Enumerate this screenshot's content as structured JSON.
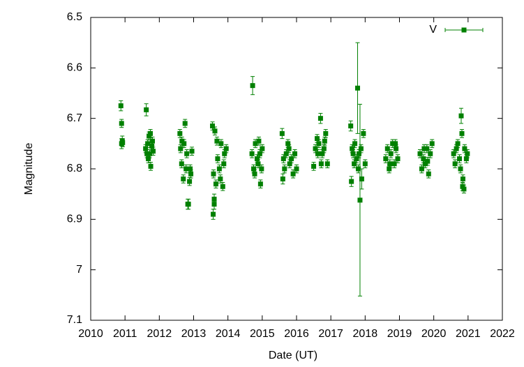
{
  "chart_data": {
    "type": "errorbar-scatter",
    "xlabel": "Date (UT)",
    "ylabel": "Magnitude",
    "xlim": [
      2010,
      2022
    ],
    "xticks": [
      2010,
      2011,
      2012,
      2013,
      2014,
      2015,
      2016,
      2017,
      2018,
      2019,
      2020,
      2021,
      2022
    ],
    "ylim": [
      7.1,
      6.5
    ],
    "yticks": [
      6.5,
      6.6,
      6.7,
      6.8,
      6.9,
      7,
      7.1
    ],
    "legend": "top-right",
    "series": [
      {
        "name": "V",
        "color": "#008000",
        "x": [
          2010.88,
          2010.9,
          2010.92,
          2010.9,
          2010.93,
          2011.62,
          2011.6,
          2011.66,
          2011.7,
          2011.72,
          2011.75,
          2011.78,
          2011.8,
          2011.68,
          2011.74,
          2011.82,
          2011.64,
          2012.6,
          2012.62,
          2012.65,
          2012.7,
          2012.72,
          2012.75,
          2012.78,
          2012.8,
          2012.85,
          2012.88,
          2012.9,
          2012.95,
          2012.66,
          2012.83,
          2012.92,
          2013.55,
          2013.57,
          2013.6,
          2013.62,
          2013.65,
          2013.7,
          2013.75,
          2013.8,
          2013.85,
          2013.9,
          2013.95,
          2013.58,
          2013.6,
          2013.68,
          2013.78,
          2013.88,
          2014.72,
          2014.7,
          2014.75,
          2014.8,
          2014.85,
          2014.9,
          2014.95,
          2015.0,
          2014.78,
          2014.88,
          2014.93,
          2014.98,
          2015.58,
          2015.6,
          2015.65,
          2015.7,
          2015.75,
          2015.8,
          2015.85,
          2015.9,
          2015.95,
          2016.0,
          2015.62,
          2015.78,
          2016.5,
          2016.55,
          2016.6,
          2016.65,
          2016.7,
          2016.75,
          2016.8,
          2016.85,
          2016.9,
          2016.72,
          2016.62,
          2016.82,
          2017.58,
          2017.6,
          2017.62,
          2017.65,
          2017.7,
          2017.75,
          2017.78,
          2017.8,
          2017.85,
          2017.9,
          2017.95,
          2018.0,
          2017.82,
          2017.88,
          2017.68,
          2018.6,
          2018.65,
          2018.7,
          2018.75,
          2018.8,
          2018.85,
          2018.9,
          2018.95,
          2018.72,
          2018.88,
          2019.6,
          2019.65,
          2019.7,
          2019.75,
          2019.8,
          2019.85,
          2019.9,
          2019.95,
          2019.72,
          2019.82,
          2020.58,
          2020.62,
          2020.66,
          2020.7,
          2020.75,
          2020.8,
          2020.82,
          2020.85,
          2020.88,
          2020.9,
          2020.95,
          2020.98,
          2020.84,
          2020.78
        ],
        "values": [
          6.675,
          6.71,
          6.745,
          6.75,
          6.748,
          6.683,
          6.76,
          6.75,
          6.735,
          6.77,
          6.795,
          6.755,
          6.745,
          6.78,
          6.73,
          6.765,
          6.77,
          6.73,
          6.76,
          6.79,
          6.82,
          6.75,
          6.71,
          6.8,
          6.77,
          6.87,
          6.825,
          6.8,
          6.765,
          6.745,
          6.87,
          6.81,
          6.715,
          6.89,
          6.87,
          6.725,
          6.83,
          6.78,
          6.8,
          6.75,
          6.835,
          6.77,
          6.76,
          6.81,
          6.86,
          6.745,
          6.82,
          6.79,
          6.635,
          6.77,
          6.8,
          6.75,
          6.78,
          6.745,
          6.83,
          6.76,
          6.81,
          6.79,
          6.77,
          6.8,
          6.73,
          6.82,
          6.8,
          6.77,
          6.75,
          6.79,
          6.78,
          6.81,
          6.77,
          6.8,
          6.78,
          6.76,
          6.795,
          6.76,
          6.74,
          6.75,
          6.7,
          6.77,
          6.76,
          6.73,
          6.79,
          6.79,
          6.77,
          6.745,
          6.715,
          6.825,
          6.76,
          6.77,
          6.75,
          6.78,
          6.64,
          6.8,
          6.862,
          6.82,
          6.73,
          6.79,
          6.77,
          6.76,
          6.79,
          6.78,
          6.76,
          6.8,
          6.77,
          6.75,
          6.79,
          6.76,
          6.78,
          6.79,
          6.75,
          6.77,
          6.8,
          6.78,
          6.79,
          6.76,
          6.81,
          6.77,
          6.75,
          6.76,
          6.785,
          6.77,
          6.79,
          6.76,
          6.75,
          6.78,
          6.695,
          6.73,
          6.82,
          6.84,
          6.76,
          6.78,
          6.77,
          6.835,
          6.8
        ],
        "errors": [
          0.01,
          0.008,
          0.01,
          0.01,
          0.008,
          0.012,
          0.008,
          0.008,
          0.008,
          0.008,
          0.008,
          0.008,
          0.008,
          0.008,
          0.008,
          0.008,
          0.008,
          0.008,
          0.008,
          0.008,
          0.008,
          0.008,
          0.008,
          0.008,
          0.008,
          0.01,
          0.008,
          0.008,
          0.008,
          0.008,
          0.01,
          0.008,
          0.008,
          0.01,
          0.01,
          0.008,
          0.008,
          0.008,
          0.008,
          0.008,
          0.008,
          0.008,
          0.008,
          0.008,
          0.01,
          0.008,
          0.008,
          0.008,
          0.018,
          0.008,
          0.008,
          0.008,
          0.008,
          0.008,
          0.008,
          0.008,
          0.008,
          0.008,
          0.008,
          0.008,
          0.01,
          0.01,
          0.008,
          0.008,
          0.008,
          0.008,
          0.008,
          0.008,
          0.008,
          0.008,
          0.008,
          0.008,
          0.008,
          0.008,
          0.008,
          0.008,
          0.01,
          0.008,
          0.008,
          0.008,
          0.008,
          0.008,
          0.008,
          0.008,
          0.01,
          0.01,
          0.008,
          0.008,
          0.008,
          0.008,
          0.09,
          0.008,
          0.19,
          0.02,
          0.008,
          0.008,
          0.008,
          0.008,
          0.008,
          0.008,
          0.008,
          0.008,
          0.008,
          0.008,
          0.008,
          0.008,
          0.008,
          0.008,
          0.008,
          0.008,
          0.008,
          0.008,
          0.008,
          0.008,
          0.008,
          0.008,
          0.008,
          0.008,
          0.008,
          0.008,
          0.008,
          0.008,
          0.008,
          0.008,
          0.015,
          0.008,
          0.008,
          0.008,
          0.008,
          0.008,
          0.008,
          0.008,
          0.008
        ]
      }
    ]
  }
}
